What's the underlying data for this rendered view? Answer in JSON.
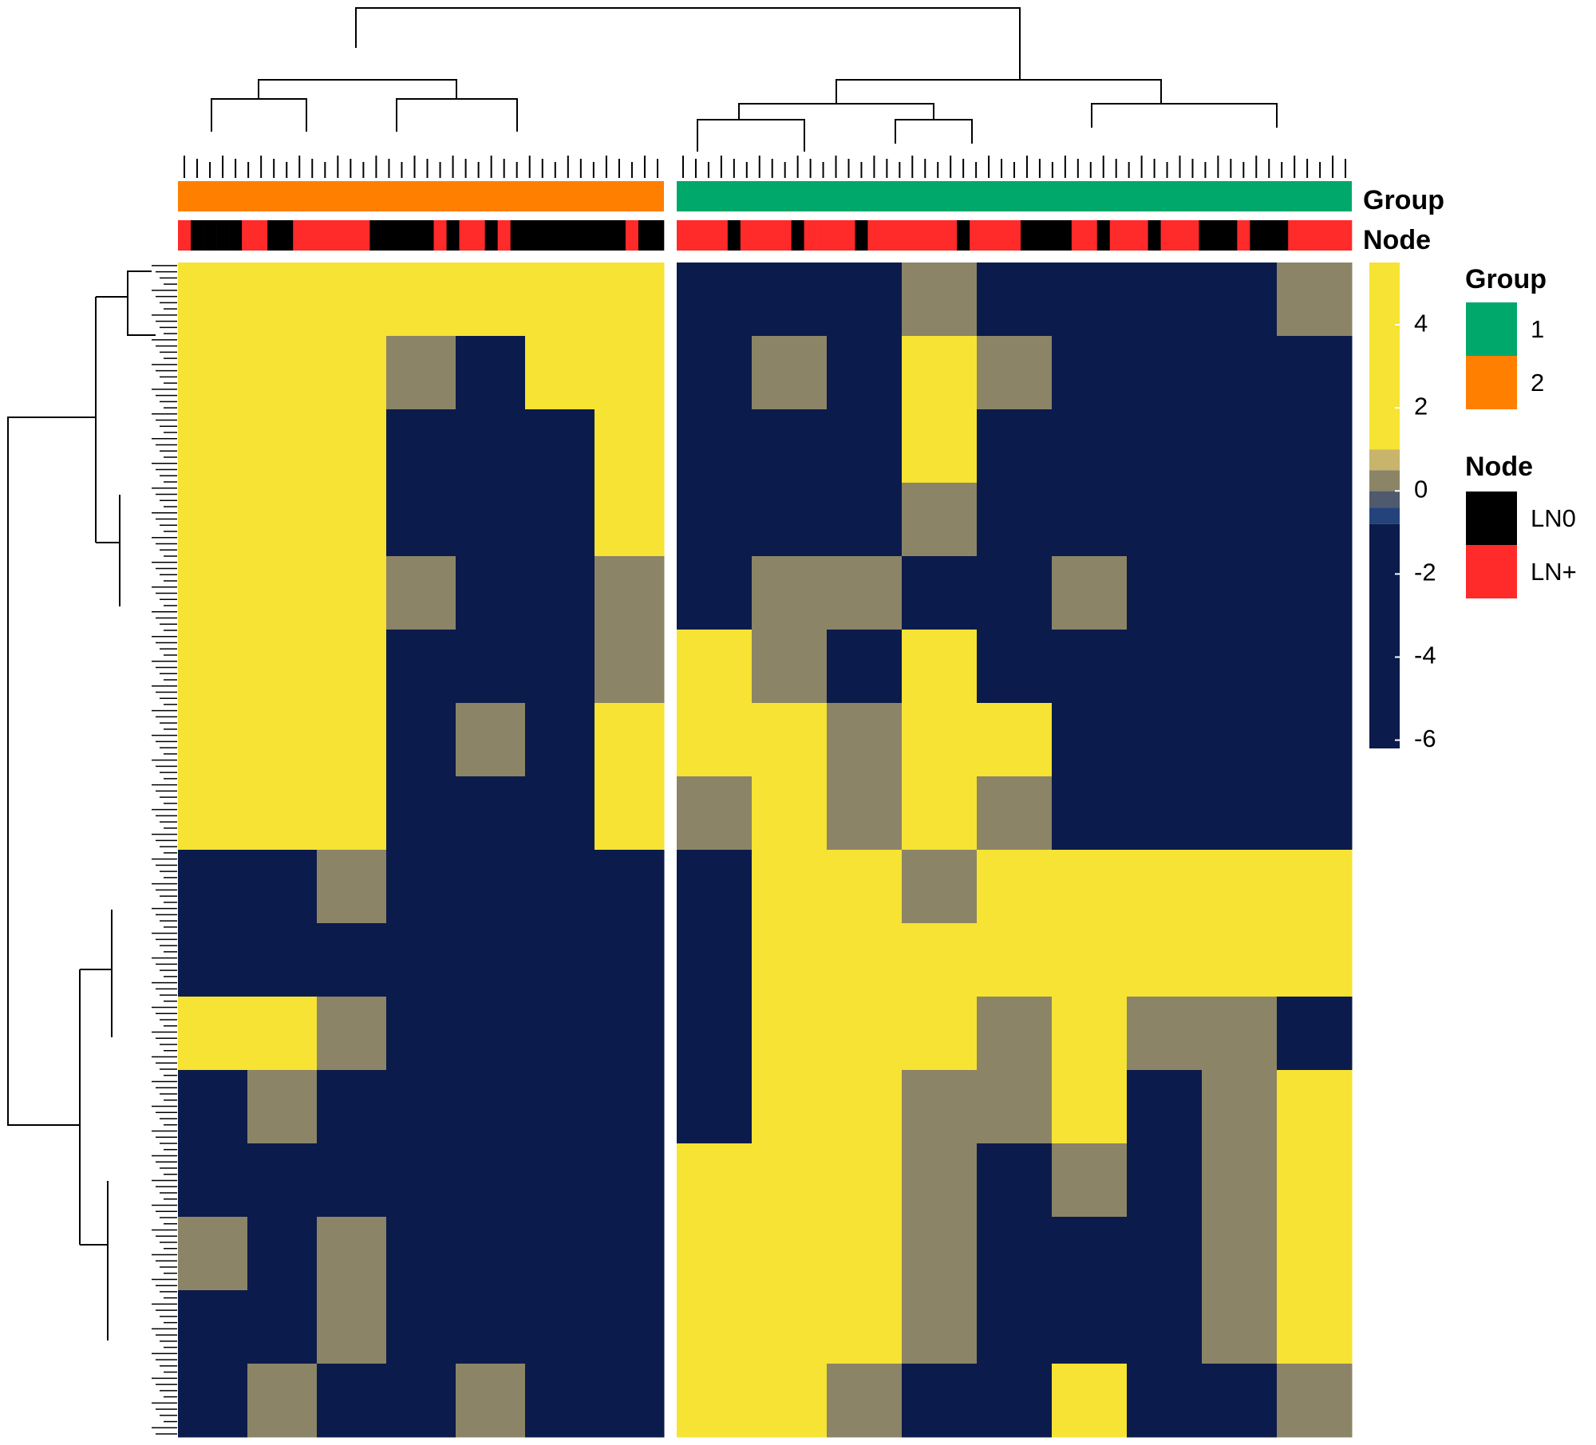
{
  "chart_data": {
    "type": "heatmap",
    "annotation_labels": [
      "Group",
      "Node"
    ],
    "colorbar": {
      "lim": [
        -6.2,
        5.5
      ],
      "ticks": [
        4,
        2,
        0,
        -2,
        -4,
        -6
      ],
      "breaks": [
        -0.8,
        -0.4,
        0,
        0.5,
        1
      ],
      "colors": [
        "#0b1b4b",
        "#23437a",
        "#4f5a6e",
        "#8c8466",
        "#c8b46a",
        "#f6e333"
      ]
    },
    "legend": {
      "group": {
        "title": "Group",
        "entries": [
          {
            "label": "1",
            "color": "#00a86b"
          },
          {
            "label": "2",
            "color": "#ff7f00"
          }
        ]
      },
      "node": {
        "title": "Node",
        "entries": [
          {
            "label": "LN0",
            "color": "#000000"
          },
          {
            "label": "LN+",
            "color": "#ff2a2a"
          }
        ]
      }
    },
    "clusters": [
      {
        "group": 1,
        "node": [
          1,
          0,
          0,
          0,
          0,
          1,
          1,
          0,
          0,
          1,
          1,
          1,
          1,
          1,
          1,
          0,
          0,
          0,
          0,
          0,
          1,
          0,
          1,
          1,
          0,
          1,
          0,
          0,
          0,
          0,
          0,
          0,
          0,
          0,
          0,
          1,
          0,
          0
        ],
        "values": [
          [
            2,
            1,
            2,
            1,
            3,
            2,
            1
          ],
          [
            2,
            1,
            2,
            0,
            -1,
            1,
            2
          ],
          [
            1,
            2,
            1,
            -2,
            -2,
            -1,
            1
          ],
          [
            2,
            2,
            1,
            -1,
            -1,
            -2,
            2
          ],
          [
            1,
            1,
            1,
            0,
            -1,
            -1,
            0
          ],
          [
            2,
            1,
            1,
            -1,
            -2,
            -1,
            0
          ],
          [
            2,
            2,
            2,
            -1,
            0,
            -2,
            1
          ],
          [
            1,
            1,
            1,
            -1,
            -3,
            -1,
            1
          ],
          [
            -3,
            -2,
            0,
            -1,
            -4,
            -3,
            -4
          ],
          [
            -2,
            -1,
            -1,
            -2,
            -3,
            -3,
            -3
          ],
          [
            1,
            1,
            0,
            -1,
            -4,
            -4,
            -2
          ],
          [
            -1,
            0,
            -1,
            -1,
            -4,
            -3,
            -2
          ],
          [
            -2,
            -1,
            -1,
            -2,
            -3,
            -4,
            -3
          ],
          [
            0,
            -1,
            0,
            -2,
            -2,
            -2,
            -3
          ],
          [
            -1,
            -1,
            0,
            -2,
            -1,
            -2,
            -2
          ],
          [
            -1,
            0,
            -1,
            -1,
            0,
            -1,
            -1
          ]
        ]
      },
      {
        "group": 0,
        "node": [
          1,
          1,
          1,
          1,
          0,
          1,
          1,
          1,
          1,
          0,
          1,
          1,
          1,
          1,
          0,
          1,
          1,
          1,
          1,
          1,
          1,
          1,
          0,
          1,
          1,
          1,
          1,
          0,
          0,
          0,
          0,
          1,
          1,
          0,
          1,
          1,
          1,
          0,
          1,
          1,
          1,
          0,
          0,
          0,
          1,
          0,
          0,
          0,
          1,
          1,
          1,
          1,
          1
        ],
        "values": [
          [
            -2,
            -1,
            -2,
            0,
            -1,
            -1,
            -4,
            -1,
            0
          ],
          [
            -2,
            0,
            -2,
            1,
            0,
            -1,
            -4,
            -1,
            -1
          ],
          [
            -2,
            -1,
            -1,
            1,
            -1,
            -1,
            -2,
            -1,
            -2
          ],
          [
            -1,
            -1,
            -1,
            0,
            -1,
            -1,
            -3,
            -1,
            -1
          ],
          [
            -1,
            0,
            0,
            -1,
            -1,
            0,
            -2,
            -1,
            -1
          ],
          [
            1,
            0,
            -1,
            1,
            -1,
            -1,
            -3,
            -2,
            -1
          ],
          [
            1,
            1,
            0,
            2,
            1,
            -1,
            -3,
            -2,
            -1
          ],
          [
            0,
            1,
            0,
            1,
            0,
            -2,
            -2,
            -2,
            -1
          ],
          [
            -2,
            2,
            1,
            0,
            1,
            2,
            1,
            1,
            1
          ],
          [
            -2,
            2,
            1,
            1,
            1,
            2,
            1,
            1,
            1
          ],
          [
            -3,
            2,
            2,
            1,
            0,
            1,
            0,
            0,
            -1
          ],
          [
            -1,
            2,
            1,
            0,
            0,
            1,
            -1,
            0,
            1
          ],
          [
            1,
            2,
            1,
            0,
            -1,
            0,
            -1,
            0,
            1
          ],
          [
            1,
            2,
            1,
            0,
            -1,
            -1,
            -1,
            0,
            1
          ],
          [
            2,
            3,
            1,
            0,
            -1,
            -2,
            -1,
            0,
            1
          ],
          [
            1,
            2,
            0,
            -1,
            -1,
            1,
            -1,
            -1,
            0
          ]
        ]
      }
    ]
  }
}
